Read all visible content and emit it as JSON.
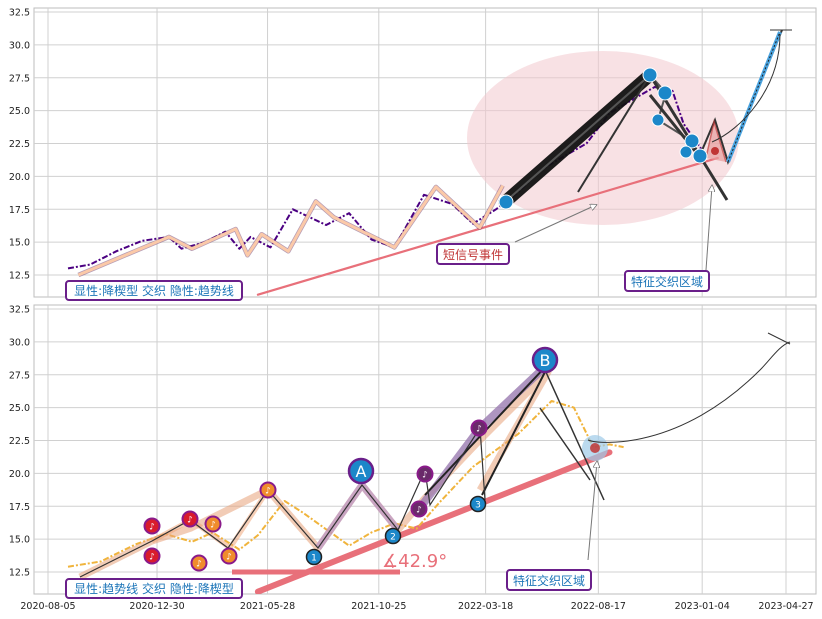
{
  "chart_data": [
    {
      "type": "line",
      "panel": "top",
      "title": "",
      "xlabel": "",
      "ylabel": "",
      "ylim": [
        11,
        32.5
      ],
      "yticks": [
        "12.5",
        "15.0",
        "17.5",
        "20.0",
        "22.5",
        "25.0",
        "27.5",
        "30.0",
        "32.5"
      ],
      "grid": true,
      "series": [
        {
          "color": "#4b0082",
          "style": "dashed",
          "points": [
            [
              "2020-09-01",
              13.0
            ],
            [
              "2020-10-01",
              13.3
            ],
            [
              "2020-11-05",
              14.3
            ],
            [
              "2020-12-10",
              15.1
            ],
            [
              "2021-01-15",
              15.4
            ],
            [
              "2021-02-01",
              14.5
            ],
            [
              "2021-03-05",
              15.0
            ],
            [
              "2021-04-01",
              15.8
            ],
            [
              "2021-04-20",
              14.5
            ],
            [
              "2021-05-05",
              15.4
            ],
            [
              "2021-06-01",
              14.6
            ],
            [
              "2021-07-01",
              17.5
            ],
            [
              "2021-08-15",
              16.3
            ],
            [
              "2021-09-15",
              17.2
            ],
            [
              "2021-10-15",
              15.2
            ],
            [
              "2021-11-15",
              14.6
            ],
            [
              "2021-12-25",
              18.6
            ],
            [
              "2022-02-01",
              17.9
            ],
            [
              "2022-03-01",
              16.4
            ],
            [
              "2022-04-01",
              17.5
            ],
            [
              "2022-05-01",
              18.8
            ],
            [
              "2022-06-01",
              20.5
            ],
            [
              "2022-07-01",
              21.5
            ],
            [
              "2022-08-01",
              22.5
            ],
            [
              "2022-09-01",
              24.8
            ],
            [
              "2022-10-01",
              25.8
            ],
            [
              "2022-11-01",
              26.8
            ],
            [
              "2022-11-25",
              26.5
            ],
            [
              "2022-12-10",
              24.0
            ],
            [
              "2023-01-10",
              21.5
            ]
          ]
        },
        {
          "color": "#fbc9a8",
          "style": "solid",
          "points": [
            [
              "2020-09-15",
              12.5
            ],
            [
              "2021-01-15",
              15.4
            ],
            [
              "2021-02-15",
              14.5
            ],
            [
              "2021-04-15",
              16.0
            ],
            [
              "2021-05-01",
              14.0
            ],
            [
              "2021-05-20",
              15.6
            ],
            [
              "2021-06-25",
              14.3
            ],
            [
              "2021-08-01",
              18.1
            ],
            [
              "2021-08-25",
              16.9
            ],
            [
              "2021-11-15",
              14.6
            ],
            [
              "2022-01-10",
              19.2
            ],
            [
              "2022-03-10",
              16.1
            ],
            [
              "2022-04-10",
              19.3
            ]
          ]
        }
      ],
      "overlays": {
        "trendline": {
          "color": "#e8707a",
          "from": [
            "2021-05-15",
            11.0
          ],
          "to": [
            "2023-01-25",
            21.4
          ]
        },
        "ellipse_color": "#f6d6da",
        "dots_color": "#1c87c9"
      },
      "annotations": [
        {
          "text": "显性:降楔型 交织 隐性:趋势线",
          "color": "#1c75b8"
        },
        {
          "text": "短信号事件",
          "color": "#c03535"
        },
        {
          "text": "特征交织区域",
          "color": "#1c75b8"
        }
      ]
    },
    {
      "type": "line",
      "panel": "bottom",
      "title": "",
      "xlabel": "",
      "ylabel": "",
      "ylim": [
        11,
        32.5
      ],
      "yticks": [
        "12.5",
        "15.0",
        "17.5",
        "20.0",
        "22.5",
        "25.0",
        "27.5",
        "30.0",
        "32.5"
      ],
      "xticks": [
        "2020-08-05",
        "2020-12-30",
        "2021-05-28",
        "2021-10-25",
        "2022-03-18",
        "2022-08-17",
        "2023-01-04",
        "2023-04-27"
      ],
      "grid": true,
      "series": [
        {
          "color": "#f0b43c",
          "style": "dashed",
          "points": [
            [
              "2020-09-01",
              12.9
            ],
            [
              "2020-10-15",
              13.3
            ],
            [
              "2020-12-01",
              14.6
            ],
            [
              "2021-01-10",
              15.4
            ],
            [
              "2021-02-15",
              14.8
            ],
            [
              "2021-03-15",
              15.5
            ],
            [
              "2021-04-20",
              14.2
            ],
            [
              "2021-05-15",
              15.3
            ],
            [
              "2021-06-20",
              17.9
            ],
            [
              "2021-07-15",
              17.0
            ],
            [
              "2021-09-15",
              14.5
            ],
            [
              "2021-10-15",
              15.5
            ],
            [
              "2021-11-15",
              16.2
            ],
            [
              "2021-12-15",
              15.8
            ],
            [
              "2022-01-15",
              17.8
            ],
            [
              "2022-03-01",
              20.5
            ],
            [
              "2022-05-01",
              23.0
            ],
            [
              "2022-06-15",
              25.5
            ],
            [
              "2022-07-15",
              25.0
            ],
            [
              "2022-08-10",
              22.0
            ],
            [
              "2022-09-01",
              22.2
            ],
            [
              "2022-09-20",
              22.0
            ]
          ]
        }
      ],
      "overlays": {
        "trendline": {
          "color": "#e8707a",
          "from": [
            "2021-05-15",
            11.0
          ],
          "to": [
            "2022-09-01",
            21.6
          ]
        },
        "angle_label": "∡42.9°"
      },
      "markers": {
        "big": [
          "A",
          "B"
        ],
        "numbered": [
          "1",
          "2",
          "3"
        ]
      },
      "annotations": [
        {
          "text": "显性:趋势线 交织 隐性:降楔型",
          "color": "#1c75b8"
        },
        {
          "text": "特征交织区域",
          "color": "#1c75b8"
        }
      ]
    }
  ]
}
